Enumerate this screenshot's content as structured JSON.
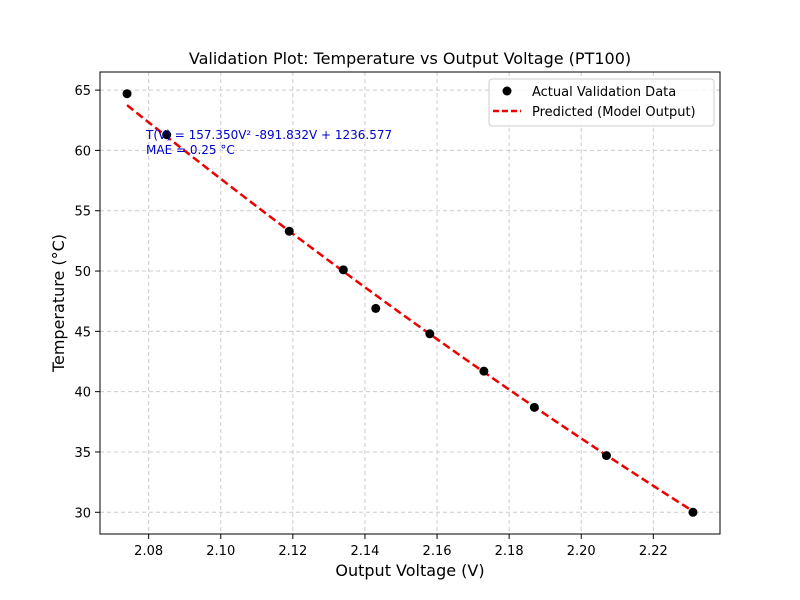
{
  "chart_data": {
    "type": "scatter",
    "title": "Validation Plot: Temperature vs Output Voltage (PT100)",
    "xlabel": "Output Voltage (V)",
    "ylabel": "Temperature (°C)",
    "xlim": [
      2.0665,
      2.2385
    ],
    "ylim": [
      28.2,
      66.5
    ],
    "x_ticks": [
      2.08,
      2.1,
      2.12,
      2.14,
      2.16,
      2.18,
      2.2,
      2.22
    ],
    "x_tick_labels": [
      "2.08",
      "2.10",
      "2.12",
      "2.14",
      "2.16",
      "2.18",
      "2.20",
      "2.22"
    ],
    "y_ticks": [
      30,
      35,
      40,
      45,
      50,
      55,
      60,
      65
    ],
    "y_tick_labels": [
      "30",
      "35",
      "40",
      "45",
      "50",
      "55",
      "60",
      "65"
    ],
    "grid": true,
    "legend_position": "top-right",
    "annotation": {
      "equation": "T(V) = 157.350V² -891.832V + 1236.577",
      "mae": "MAE = 0.25 °C"
    },
    "series": [
      {
        "name": "Actual Validation Data",
        "kind": "scatter",
        "color": "#000000",
        "x": [
          2.074,
          2.085,
          2.119,
          2.134,
          2.143,
          2.158,
          2.173,
          2.187,
          2.207,
          2.231
        ],
        "y": [
          64.7,
          61.3,
          53.3,
          50.1,
          46.9,
          44.8,
          41.7,
          38.7,
          34.7,
          30.0
        ]
      },
      {
        "name": "Predicted (Model Output)",
        "kind": "line",
        "color": "#ee0000",
        "dash": true,
        "coefficients": [
          157.35,
          -891.832,
          1236.577
        ],
        "x_range": [
          2.074,
          2.231
        ]
      }
    ]
  }
}
